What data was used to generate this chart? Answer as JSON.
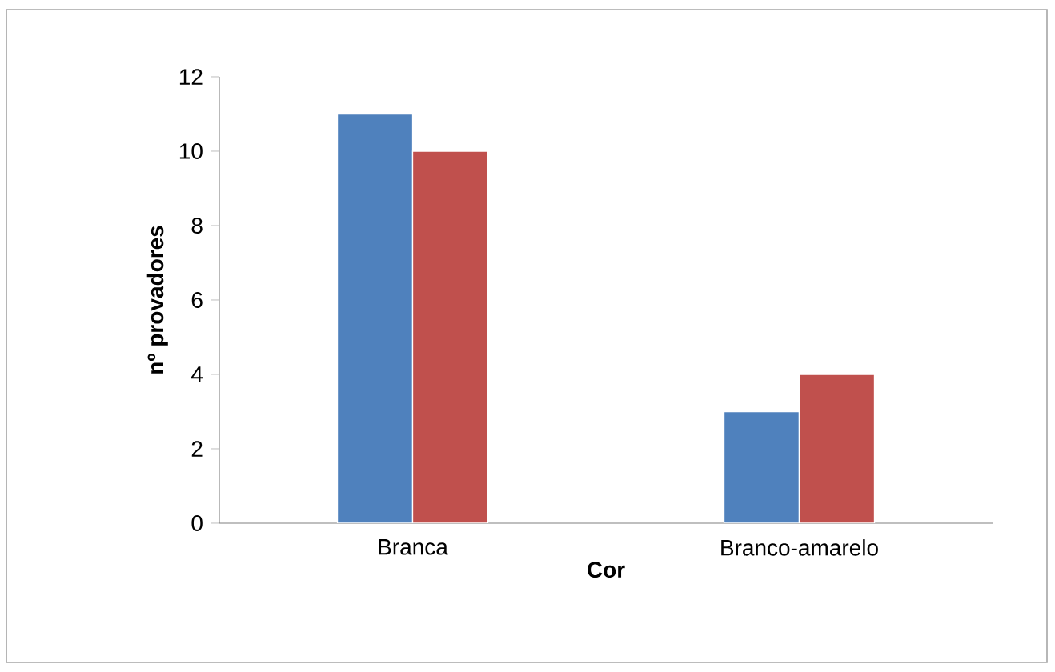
{
  "chart_data": {
    "type": "bar",
    "xlabel": "Cor",
    "ylabel": "nº provadores",
    "categories": [
      "Branca",
      "Branco-amarelo"
    ],
    "series": [
      {
        "color": "#4f81bd",
        "values": [
          11,
          3
        ]
      },
      {
        "color": "#c0504d",
        "values": [
          10,
          4
        ]
      }
    ],
    "ylim": [
      0,
      12
    ],
    "yticks": [
      0,
      2,
      4,
      6,
      8,
      10,
      12
    ]
  }
}
